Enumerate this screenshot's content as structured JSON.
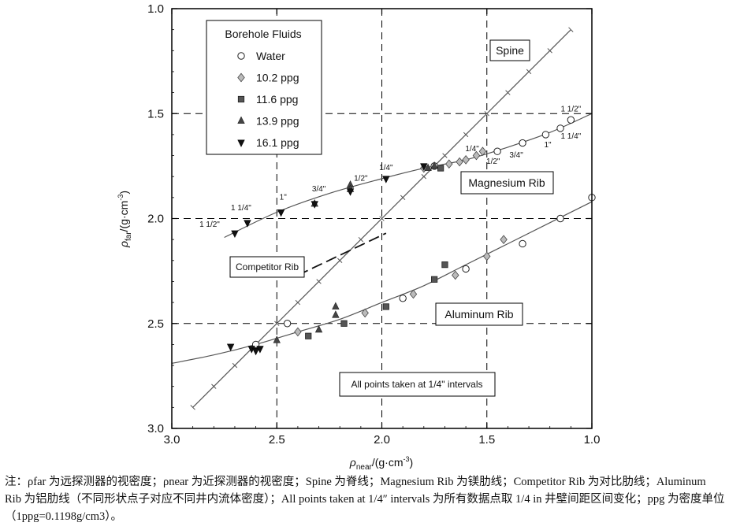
{
  "chart_data": {
    "type": "scatter",
    "xlabel": {
      "symbol": "ρ",
      "sub": "near",
      "unit": "/(g·cm",
      "sup": "-3",
      "close": ")"
    },
    "ylabel": {
      "symbol": "ρ",
      "sub": "far",
      "unit": "/(g·cm",
      "sup": "-3",
      "close": ")"
    },
    "xlim": [
      3.0,
      1.0
    ],
    "ylim": [
      3.0,
      1.0
    ],
    "x_ticks": [
      "3.0",
      "2.5",
      "2.0",
      "1.5",
      "1.0"
    ],
    "y_ticks": [
      "1.0",
      "1.5",
      "2.0",
      "2.5",
      "3.0"
    ],
    "legend": {
      "title": "Borehole Fluids",
      "entries": [
        {
          "label": "Water",
          "marker": "circle"
        },
        {
          "label": "10.2 ppg",
          "marker": "diamond"
        },
        {
          "label": "11.6 ppg",
          "marker": "square"
        },
        {
          "label": "13.9 ppg",
          "marker": "triangle-up"
        },
        {
          "label": "16.1 ppg",
          "marker": "triangle-down"
        }
      ]
    },
    "annotations": {
      "spine": "Spine",
      "magnesium": "Magnesium Rib",
      "competitor": "Competitor Rib",
      "aluminum": "Aluminum Rib",
      "interval_note": "All points taken at 1/4\" intervals"
    },
    "standoff_labels_mg_left": [
      "1 1/2\"",
      "1 1/4\"",
      "1\"",
      "3/4\"",
      "1/2\"",
      "1/4\""
    ],
    "standoff_labels_mg_right": [
      "1/4\"",
      "1/2\"",
      "3/4\"",
      "1\"",
      "1 1/4\"",
      "1 1/2\""
    ],
    "spine_line": {
      "x": [
        2.9,
        1.1
      ],
      "y": [
        2.9,
        1.1
      ]
    },
    "magnesium_curve": {
      "x": [
        2.75,
        2.5,
        2.25,
        2.0,
        1.8,
        1.6,
        1.4,
        1.2,
        1.0
      ],
      "y": [
        2.09,
        1.97,
        1.88,
        1.81,
        1.76,
        1.72,
        1.66,
        1.59,
        1.5
      ]
    },
    "aluminum_curve": {
      "x": [
        3.0,
        2.8,
        2.6,
        2.4,
        2.2,
        2.0,
        1.8,
        1.6,
        1.4,
        1.2,
        1.0
      ],
      "y": [
        2.69,
        2.65,
        2.6,
        2.54,
        2.48,
        2.4,
        2.32,
        2.22,
        2.12,
        2.02,
        1.92
      ]
    },
    "competitor_rib": {
      "x": [
        2.4,
        1.98
      ],
      "y": [
        2.27,
        2.07
      ]
    },
    "series": [
      {
        "name": "Water",
        "marker": "circle",
        "x": [
          2.6,
          2.45,
          1.9,
          1.6,
          1.33,
          1.15,
          1.75,
          1.45,
          1.33,
          1.22,
          1.15,
          1.1,
          1.0
        ],
        "y": [
          2.6,
          2.5,
          2.38,
          2.24,
          2.12,
          2.0,
          1.75,
          1.68,
          1.64,
          1.6,
          1.57,
          1.53,
          1.9
        ]
      },
      {
        "name": "10.2 ppg",
        "marker": "diamond",
        "x": [
          2.4,
          2.08,
          1.85,
          1.65,
          1.5,
          1.42,
          1.8,
          1.68,
          1.63,
          1.6,
          1.55,
          1.52
        ],
        "y": [
          2.54,
          2.45,
          2.36,
          2.27,
          2.18,
          2.1,
          1.76,
          1.74,
          1.73,
          1.72,
          1.7,
          1.68
        ]
      },
      {
        "name": "11.6 ppg",
        "marker": "square",
        "x": [
          2.35,
          2.18,
          1.98,
          1.7,
          1.75,
          1.72
        ],
        "y": [
          2.56,
          2.5,
          2.42,
          2.22,
          2.29,
          1.76
        ]
      },
      {
        "name": "13.9 ppg",
        "marker": "triangle-up",
        "x": [
          2.5,
          2.3,
          2.22,
          2.15,
          2.22,
          1.78,
          1.75,
          2.32,
          2.15
        ],
        "y": [
          2.58,
          2.53,
          2.42,
          1.84,
          2.46,
          1.76,
          1.75,
          1.93,
          1.86
        ]
      },
      {
        "name": "16.1 ppg",
        "marker": "triangle-down",
        "x": [
          2.72,
          2.62,
          2.6,
          2.58,
          2.48,
          2.32,
          2.15,
          1.98,
          1.8,
          2.7,
          2.64
        ],
        "y": [
          2.61,
          2.62,
          2.63,
          2.62,
          1.97,
          1.93,
          1.87,
          1.81,
          1.75,
          2.07,
          2.02
        ]
      }
    ]
  },
  "footnote": "注：ρfar 为远探测器的视密度；ρnear 为近探测器的视密度；Spine 为脊线；Magnesium Rib 为镁肋线；Competitor Rib 为对比肋线；Aluminum Rib 为铝肋线（不同形状点子对应不同井内流体密度）；All points taken at 1/4″ intervals 为所有数据点取 1/4 in 井壁间距区间变化；ppg 为密度单位（1ppg=0.1198g/cm3）。"
}
